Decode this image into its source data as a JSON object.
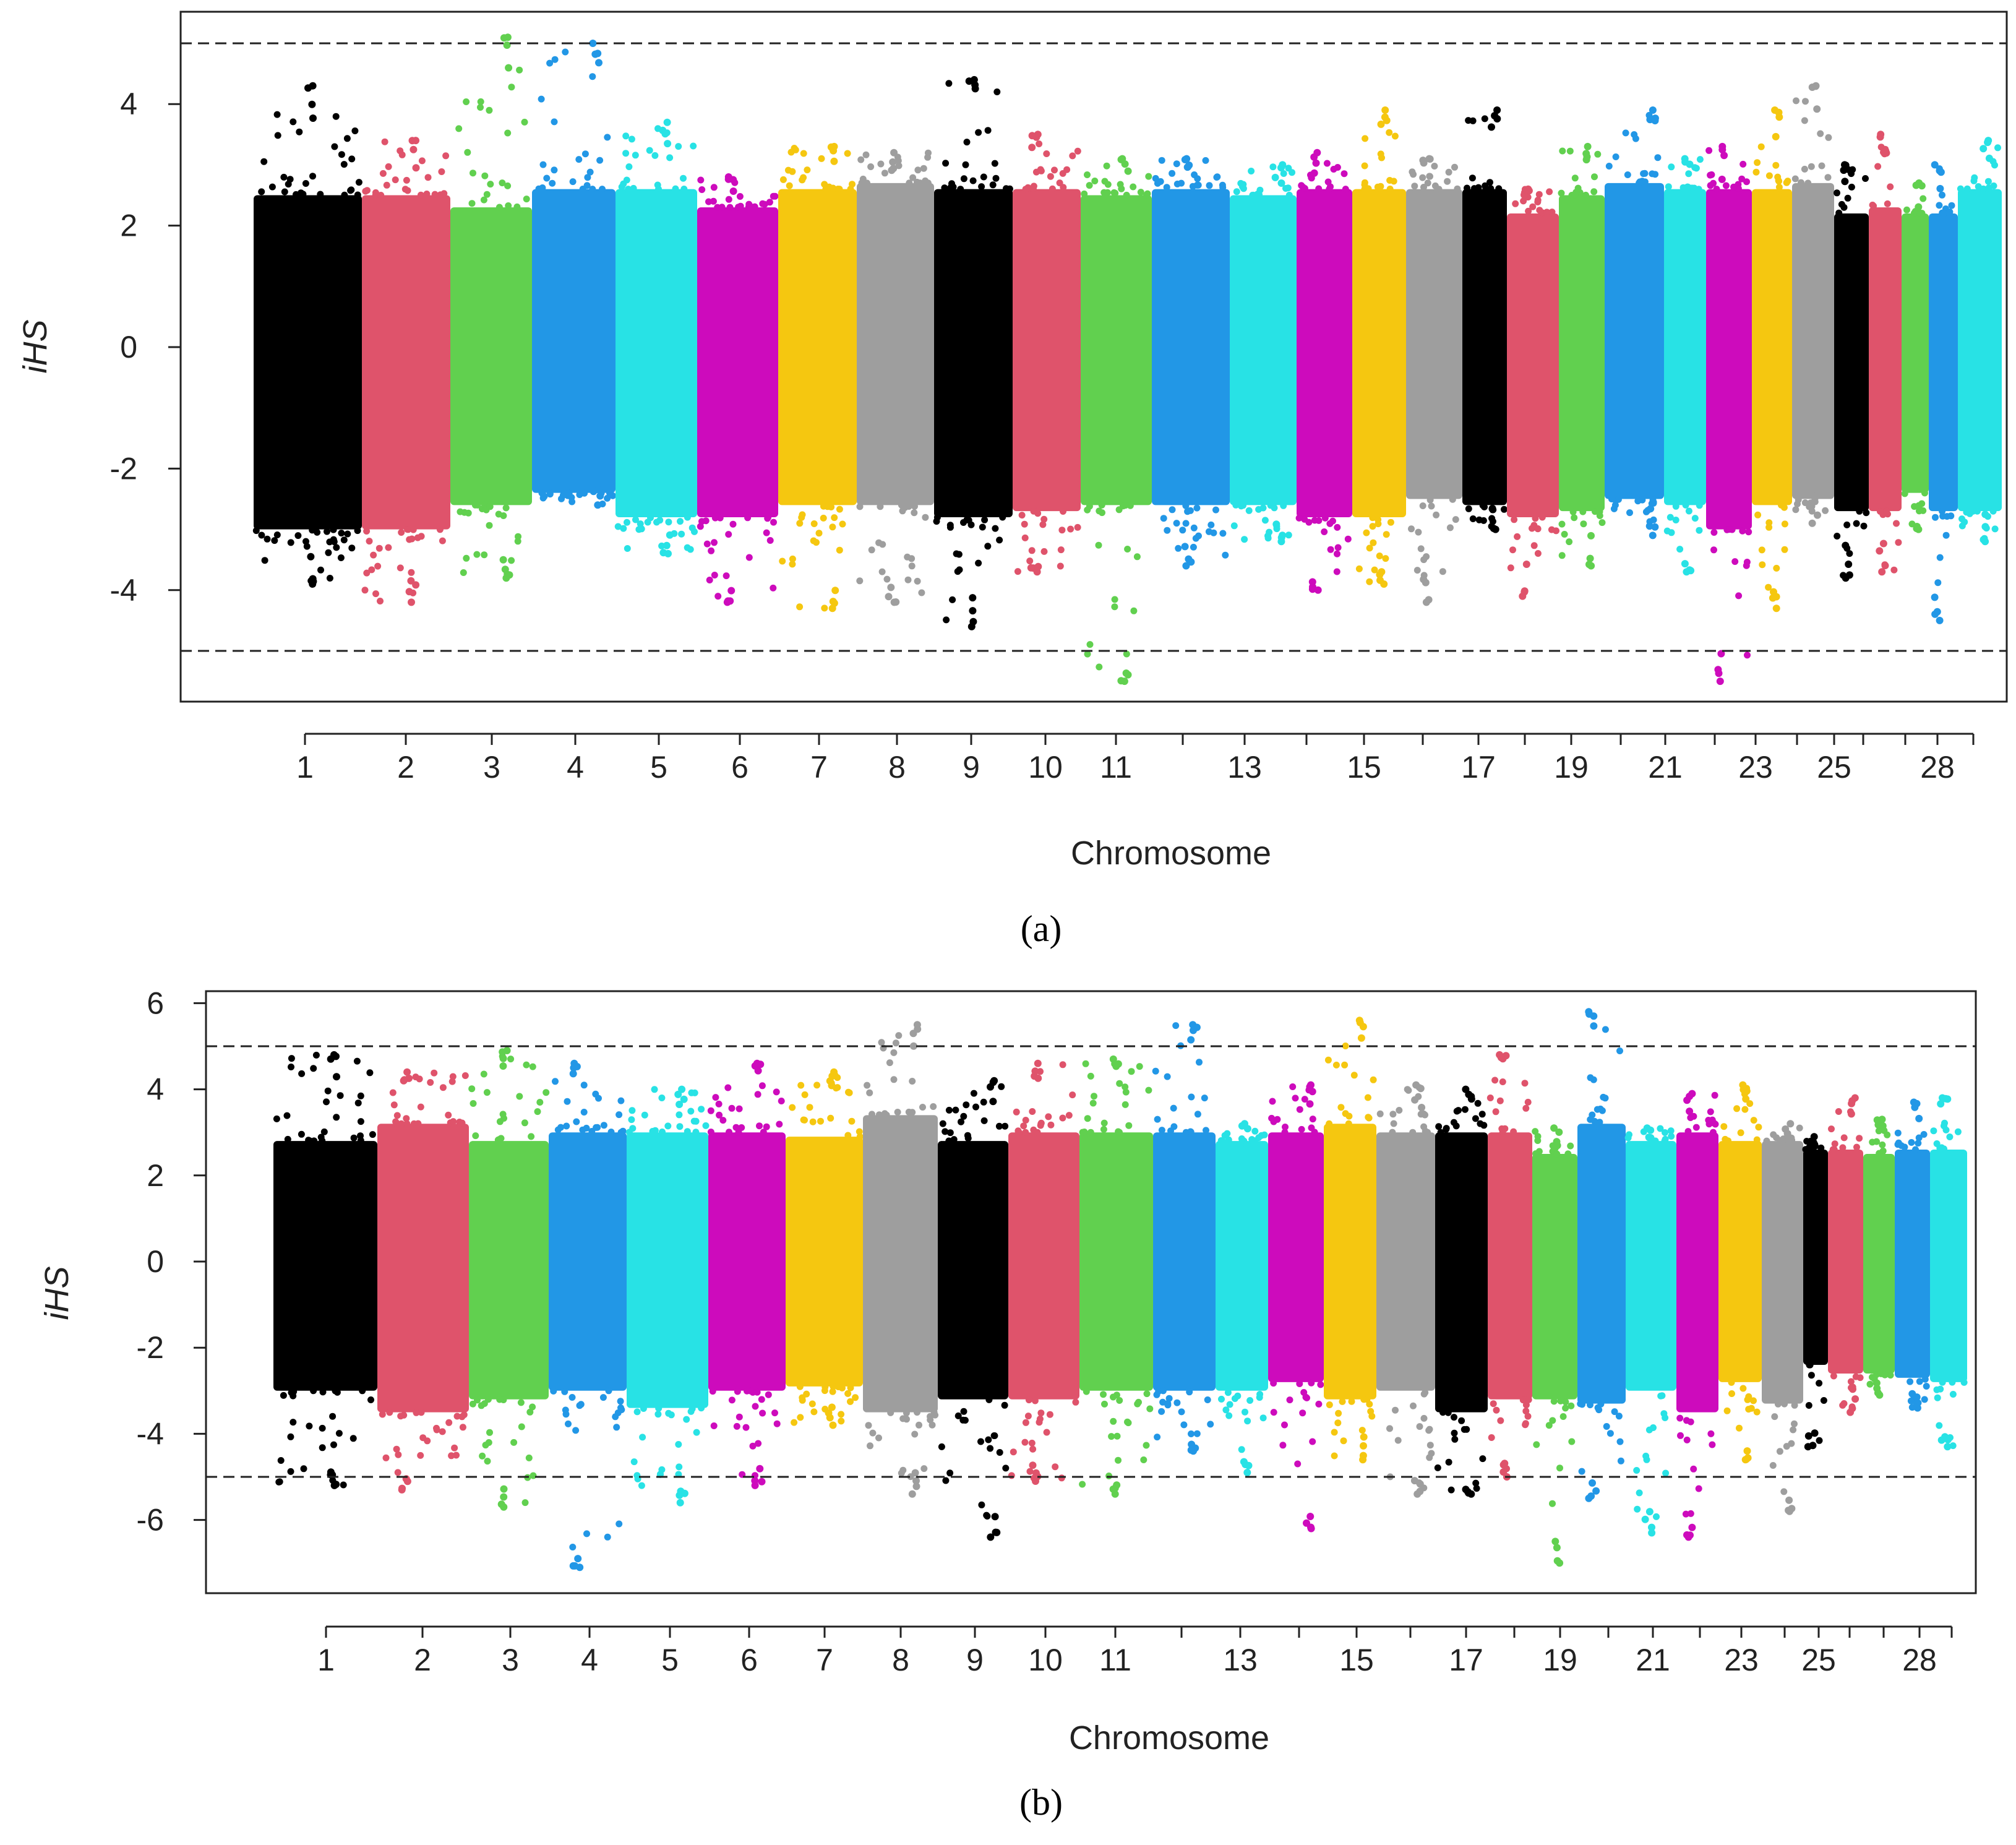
{
  "chart_data": [
    {
      "type": "scatter",
      "panel_label": "(a)",
      "xlabel": "Chromosome",
      "ylabel": "iHS",
      "ylim": [
        -5.9,
        5.7
      ],
      "yticks": [
        -4,
        -2,
        0,
        2,
        4
      ],
      "threshold_lines": [
        5,
        -5
      ],
      "x_tick_labels": [
        "1",
        "2",
        "3",
        "4",
        "5",
        "6",
        "7",
        "8",
        "9",
        "10",
        "11",
        "13",
        "15",
        "17",
        "19",
        "21",
        "23",
        "25",
        "28"
      ],
      "chromosomes": [
        {
          "chr": "1",
          "color": "#000000",
          "upper": 2.5,
          "lower": -3.0,
          "peak": 4.3,
          "trough": -3.9
        },
        {
          "chr": "2",
          "color": "#df536b",
          "upper": 2.5,
          "lower": -3.0,
          "peak": 3.4,
          "trough": -4.2
        },
        {
          "chr": "3",
          "color": "#61d04f",
          "upper": 2.3,
          "lower": -2.6,
          "peak": 5.1,
          "trough": -3.8
        },
        {
          "chr": "4",
          "color": "#2297e6",
          "upper": 2.6,
          "lower": -2.4,
          "peak": 5.0,
          "trough": -2.6
        },
        {
          "chr": "5",
          "color": "#28e2e5",
          "upper": 2.6,
          "lower": -2.8,
          "peak": 3.7,
          "trough": -3.4
        },
        {
          "chr": "6",
          "color": "#cd0bbc",
          "upper": 2.3,
          "lower": -2.8,
          "peak": 2.8,
          "trough": -4.2
        },
        {
          "chr": "7",
          "color": "#f5c710",
          "upper": 2.6,
          "lower": -2.6,
          "peak": 3.3,
          "trough": -4.3
        },
        {
          "chr": "8",
          "color": "#9e9e9e",
          "upper": 2.7,
          "lower": -2.6,
          "peak": 3.2,
          "trough": -4.2
        },
        {
          "chr": "9",
          "color": "#000000",
          "upper": 2.6,
          "lower": -2.8,
          "peak": 4.4,
          "trough": -4.6
        },
        {
          "chr": "10",
          "color": "#df536b",
          "upper": 2.6,
          "lower": -2.7,
          "peak": 3.5,
          "trough": -3.7
        },
        {
          "chr": "11",
          "color": "#61d04f",
          "upper": 2.5,
          "lower": -2.6,
          "peak": 3.1,
          "trough": -5.5
        },
        {
          "chr": "12",
          "color": "#2297e6",
          "upper": 2.6,
          "lower": -2.6,
          "peak": 3.1,
          "trough": -3.6
        },
        {
          "chr": "13",
          "color": "#28e2e5",
          "upper": 2.5,
          "lower": -2.6,
          "peak": 3.0,
          "trough": -3.2
        },
        {
          "chr": "14",
          "color": "#cd0bbc",
          "upper": 2.6,
          "lower": -2.8,
          "peak": 3.2,
          "trough": -4.0
        },
        {
          "chr": "15",
          "color": "#f5c710",
          "upper": 2.6,
          "lower": -2.8,
          "peak": 3.9,
          "trough": -3.9
        },
        {
          "chr": "16",
          "color": "#9e9e9e",
          "upper": 2.6,
          "lower": -2.5,
          "peak": 3.1,
          "trough": -4.2
        },
        {
          "chr": "17",
          "color": "#000000",
          "upper": 2.6,
          "lower": -2.6,
          "peak": 3.9,
          "trough": -3.0
        },
        {
          "chr": "18",
          "color": "#df536b",
          "upper": 2.2,
          "lower": -2.8,
          "peak": 2.6,
          "trough": -4.1
        },
        {
          "chr": "19",
          "color": "#61d04f",
          "upper": 2.5,
          "lower": -2.7,
          "peak": 3.3,
          "trough": -3.6
        },
        {
          "chr": "20",
          "color": "#2297e6",
          "upper": 2.7,
          "lower": -2.5,
          "peak": 3.9,
          "trough": -3.1
        },
        {
          "chr": "21",
          "color": "#28e2e5",
          "upper": 2.6,
          "lower": -2.6,
          "peak": 3.1,
          "trough": -3.7
        },
        {
          "chr": "22",
          "color": "#cd0bbc",
          "upper": 2.6,
          "lower": -3.0,
          "peak": 3.3,
          "trough": -5.5
        },
        {
          "chr": "23",
          "color": "#f5c710",
          "upper": 2.6,
          "lower": -2.6,
          "peak": 3.9,
          "trough": -4.3
        },
        {
          "chr": "24",
          "color": "#9e9e9e",
          "upper": 2.7,
          "lower": -2.5,
          "peak": 4.3,
          "trough": -2.9
        },
        {
          "chr": "25",
          "color": "#000000",
          "upper": 2.2,
          "lower": -2.7,
          "peak": 3.0,
          "trough": -3.8
        },
        {
          "chr": "26",
          "color": "#df536b",
          "upper": 2.3,
          "lower": -2.7,
          "peak": 3.5,
          "trough": -3.7
        },
        {
          "chr": "27",
          "color": "#61d04f",
          "upper": 2.2,
          "lower": -2.4,
          "peak": 2.7,
          "trough": -3.0
        },
        {
          "chr": "28",
          "color": "#2297e6",
          "upper": 2.2,
          "lower": -2.7,
          "peak": 3.0,
          "trough": -4.5
        },
        {
          "chr": "29",
          "color": "#28e2e5",
          "upper": 2.6,
          "lower": -2.7,
          "peak": 3.4,
          "trough": -3.2
        }
      ]
    },
    {
      "type": "scatter",
      "panel_label": "(b)",
      "xlabel": "Chromosome",
      "ylabel": "iHS",
      "ylim": [
        -7.6,
        6.4
      ],
      "yticks": [
        -6,
        -4,
        -2,
        0,
        2,
        4,
        6
      ],
      "threshold_lines": [
        5,
        -5
      ],
      "x_tick_labels": [
        "1",
        "2",
        "3",
        "4",
        "5",
        "6",
        "7",
        "8",
        "9",
        "10",
        "11",
        "13",
        "15",
        "17",
        "19",
        "21",
        "23",
        "25",
        "28"
      ],
      "chromosomes": [
        {
          "chr": "1",
          "color": "#000000",
          "upper": 2.8,
          "lower": -3.0,
          "peak": 4.8,
          "trough": -5.2
        },
        {
          "chr": "2",
          "color": "#df536b",
          "upper": 3.2,
          "lower": -3.5,
          "peak": 4.4,
          "trough": -5.3
        },
        {
          "chr": "3",
          "color": "#61d04f",
          "upper": 2.8,
          "lower": -3.2,
          "peak": 4.9,
          "trough": -5.7
        },
        {
          "chr": "4",
          "color": "#2297e6",
          "upper": 3.0,
          "lower": -3.0,
          "peak": 4.6,
          "trough": -7.1
        },
        {
          "chr": "5",
          "color": "#28e2e5",
          "upper": 3.0,
          "lower": -3.4,
          "peak": 4.0,
          "trough": -5.6
        },
        {
          "chr": "6",
          "color": "#cd0bbc",
          "upper": 3.0,
          "lower": -3.0,
          "peak": 4.6,
          "trough": -5.2
        },
        {
          "chr": "7",
          "color": "#f5c710",
          "upper": 2.9,
          "lower": -2.9,
          "peak": 4.4,
          "trough": -3.8
        },
        {
          "chr": "8",
          "color": "#9e9e9e",
          "upper": 3.4,
          "lower": -3.5,
          "peak": 5.5,
          "trough": -5.4
        },
        {
          "chr": "9",
          "color": "#000000",
          "upper": 2.8,
          "lower": -3.2,
          "peak": 4.2,
          "trough": -6.4
        },
        {
          "chr": "10",
          "color": "#df536b",
          "upper": 3.0,
          "lower": -3.2,
          "peak": 4.6,
          "trough": -5.1
        },
        {
          "chr": "11",
          "color": "#61d04f",
          "upper": 3.0,
          "lower": -3.0,
          "peak": 4.7,
          "trough": -5.4
        },
        {
          "chr": "12",
          "color": "#2297e6",
          "upper": 3.0,
          "lower": -3.0,
          "peak": 5.5,
          "trough": -4.4
        },
        {
          "chr": "13",
          "color": "#28e2e5",
          "upper": 2.8,
          "lower": -3.0,
          "peak": 3.2,
          "trough": -4.9
        },
        {
          "chr": "14",
          "color": "#cd0bbc",
          "upper": 3.0,
          "lower": -2.8,
          "peak": 4.1,
          "trough": -6.2
        },
        {
          "chr": "15",
          "color": "#f5c710",
          "upper": 3.2,
          "lower": -3.2,
          "peak": 5.6,
          "trough": -4.6
        },
        {
          "chr": "16",
          "color": "#9e9e9e",
          "upper": 3.0,
          "lower": -3.0,
          "peak": 4.1,
          "trough": -5.4
        },
        {
          "chr": "17",
          "color": "#000000",
          "upper": 3.0,
          "lower": -3.5,
          "peak": 4.0,
          "trough": -5.4
        },
        {
          "chr": "18",
          "color": "#df536b",
          "upper": 3.0,
          "lower": -3.2,
          "peak": 4.8,
          "trough": -5.0
        },
        {
          "chr": "19",
          "color": "#61d04f",
          "upper": 2.5,
          "lower": -3.2,
          "peak": 3.1,
          "trough": -7.0
        },
        {
          "chr": "20",
          "color": "#2297e6",
          "upper": 3.2,
          "lower": -3.3,
          "peak": 5.8,
          "trough": -5.5
        },
        {
          "chr": "21",
          "color": "#28e2e5",
          "upper": 2.8,
          "lower": -3.0,
          "peak": 3.1,
          "trough": -6.3
        },
        {
          "chr": "22",
          "color": "#cd0bbc",
          "upper": 3.0,
          "lower": -3.5,
          "peak": 3.9,
          "trough": -6.4
        },
        {
          "chr": "23",
          "color": "#f5c710",
          "upper": 2.8,
          "lower": -2.8,
          "peak": 4.1,
          "trough": -4.6
        },
        {
          "chr": "24",
          "color": "#9e9e9e",
          "upper": 2.8,
          "lower": -3.3,
          "peak": 3.2,
          "trough": -5.8
        },
        {
          "chr": "25",
          "color": "#000000",
          "upper": 2.6,
          "lower": -2.4,
          "peak": 2.9,
          "trough": -4.3
        },
        {
          "chr": "26",
          "color": "#df536b",
          "upper": 2.6,
          "lower": -2.6,
          "peak": 3.8,
          "trough": -3.5
        },
        {
          "chr": "27",
          "color": "#61d04f",
          "upper": 2.5,
          "lower": -2.6,
          "peak": 3.3,
          "trough": -3.1
        },
        {
          "chr": "28",
          "color": "#2297e6",
          "upper": 2.6,
          "lower": -2.7,
          "peak": 3.7,
          "trough": -3.4
        },
        {
          "chr": "29",
          "color": "#28e2e5",
          "upper": 2.6,
          "lower": -2.8,
          "peak": 3.8,
          "trough": -4.3
        }
      ]
    }
  ]
}
